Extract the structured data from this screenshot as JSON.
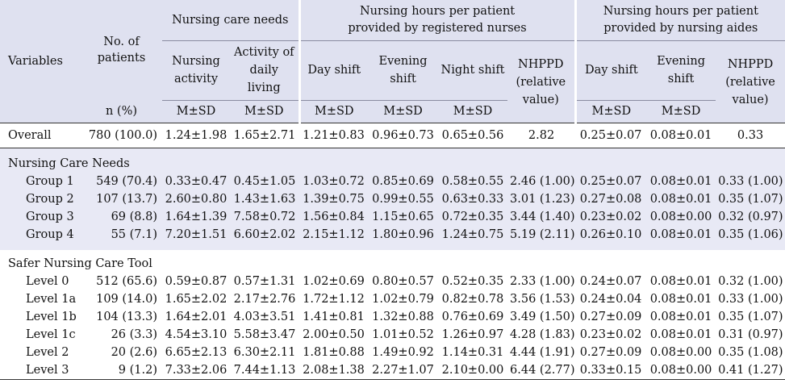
{
  "header": {
    "variables": "Variables",
    "no_patients": "No. of patients",
    "n_pct": "n (%)",
    "group_care_needs": "Nursing care needs",
    "group_rn": "Nursing hours per patient provided by registered nurses",
    "group_aides": "Nursing hours per patient provided by nursing aides",
    "nursing_activity": "Nursing activity",
    "adl": "Activity of daily living",
    "rn_day": "Day shift",
    "rn_evening": "Evening shift",
    "rn_night": "Night shift",
    "rn_nhppd": "NHPPD (relative value)",
    "aide_day": "Day shift",
    "aide_evening": "Evening shift",
    "aide_nhppd": "NHPPD (relative value)",
    "msd": "M±SD"
  },
  "overall": {
    "label": "Overall",
    "n": "780 (100.0)",
    "na": "1.24±1.98",
    "adl": "1.65±2.71",
    "rn_day": "1.21±0.83",
    "rn_evening": "0.96±0.73",
    "rn_night": "0.65±0.56",
    "rn_nhppd": "2.82",
    "aide_day": "0.25±0.07",
    "aide_evening": "0.08±0.01",
    "aide_nhppd": "0.33"
  },
  "section_ncn": {
    "title": "Nursing Care Needs",
    "rows": [
      {
        "label": "Group 1",
        "n": "549 (70.4)",
        "na": "0.33±0.47",
        "adl": "0.45±1.05",
        "rn_day": "1.03±0.72",
        "rn_evening": "0.85±0.69",
        "rn_night": "0.58±0.55",
        "rn_nhppd": "2.46 (1.00)",
        "aide_day": "0.25±0.07",
        "aide_evening": "0.08±0.01",
        "aide_nhppd": "0.33 (1.00)"
      },
      {
        "label": "Group 2",
        "n": "107 (13.7)",
        "na": "2.60±0.80",
        "adl": "1.43±1.63",
        "rn_day": "1.39±0.75",
        "rn_evening": "0.99±0.55",
        "rn_night": "0.63±0.33",
        "rn_nhppd": "3.01 (1.23)",
        "aide_day": "0.27±0.08",
        "aide_evening": "0.08±0.01",
        "aide_nhppd": "0.35 (1.07)"
      },
      {
        "label": "Group 3",
        "n": "69 (8.8)",
        "na": "1.64±1.39",
        "adl": "7.58±0.72",
        "rn_day": "1.56±0.84",
        "rn_evening": "1.15±0.65",
        "rn_night": "0.72±0.35",
        "rn_nhppd": "3.44 (1.40)",
        "aide_day": "0.23±0.02",
        "aide_evening": "0.08±0.00",
        "aide_nhppd": "0.32 (0.97)"
      },
      {
        "label": "Group 4",
        "n": "55 (7.1)",
        "na": "7.20±1.51",
        "adl": "6.60±2.02",
        "rn_day": "2.15±1.12",
        "rn_evening": "1.80±0.96",
        "rn_night": "1.24±0.75",
        "rn_nhppd": "5.19 (2.11)",
        "aide_day": "0.26±0.10",
        "aide_evening": "0.08±0.01",
        "aide_nhppd": "0.35 (1.06)"
      }
    ]
  },
  "section_snct": {
    "title": "Safer Nursing Care Tool",
    "rows": [
      {
        "label": "Level 0",
        "n": "512 (65.6)",
        "na": "0.59±0.87",
        "adl": "0.57±1.31",
        "rn_day": "1.02±0.69",
        "rn_evening": "0.80±0.57",
        "rn_night": "0.52±0.35",
        "rn_nhppd": "2.33 (1.00)",
        "aide_day": "0.24±0.07",
        "aide_evening": "0.08±0.01",
        "aide_nhppd": "0.32 (1.00)"
      },
      {
        "label": "Level 1a",
        "n": "109 (14.0)",
        "na": "1.65±2.02",
        "adl": "2.17±2.76",
        "rn_day": "1.72±1.12",
        "rn_evening": "1.02±0.79",
        "rn_night": "0.82±0.78",
        "rn_nhppd": "3.56 (1.53)",
        "aide_day": "0.24±0.04",
        "aide_evening": "0.08±0.01",
        "aide_nhppd": "0.33 (1.00)"
      },
      {
        "label": "Level 1b",
        "n": "104 (13.3)",
        "na": "1.64±2.01",
        "adl": "4.03±3.51",
        "rn_day": "1.41±0.81",
        "rn_evening": "1.32±0.88",
        "rn_night": "0.76±0.69",
        "rn_nhppd": "3.49 (1.50)",
        "aide_day": "0.27±0.09",
        "aide_evening": "0.08±0.01",
        "aide_nhppd": "0.35 (1.07)"
      },
      {
        "label": "Level 1c",
        "n": "26 (3.3)",
        "na": "4.54±3.10",
        "adl": "5.58±3.47",
        "rn_day": "2.00±0.50",
        "rn_evening": "1.01±0.52",
        "rn_night": "1.26±0.97",
        "rn_nhppd": "4.28 (1.83)",
        "aide_day": "0.23±0.02",
        "aide_evening": "0.08±0.01",
        "aide_nhppd": "0.31 (0.97)"
      },
      {
        "label": "Level 2",
        "n": "20 (2.6)",
        "na": "6.65±2.13",
        "adl": "6.30±2.11",
        "rn_day": "1.81±0.88",
        "rn_evening": "1.49±0.92",
        "rn_night": "1.14±0.31",
        "rn_nhppd": "4.44 (1.91)",
        "aide_day": "0.27±0.09",
        "aide_evening": "0.08±0.00",
        "aide_nhppd": "0.35 (1.08)"
      },
      {
        "label": "Level 3",
        "n": "9 (1.2)",
        "na": "7.33±2.06",
        "adl": "7.44±1.13",
        "rn_day": "2.08±1.38",
        "rn_evening": "2.27±1.07",
        "rn_night": "2.10±0.00",
        "rn_nhppd": "6.44 (2.77)",
        "aide_day": "0.33±0.15",
        "aide_evening": "0.08±0.00",
        "aide_nhppd": "0.41 (1.27)"
      }
    ]
  }
}
